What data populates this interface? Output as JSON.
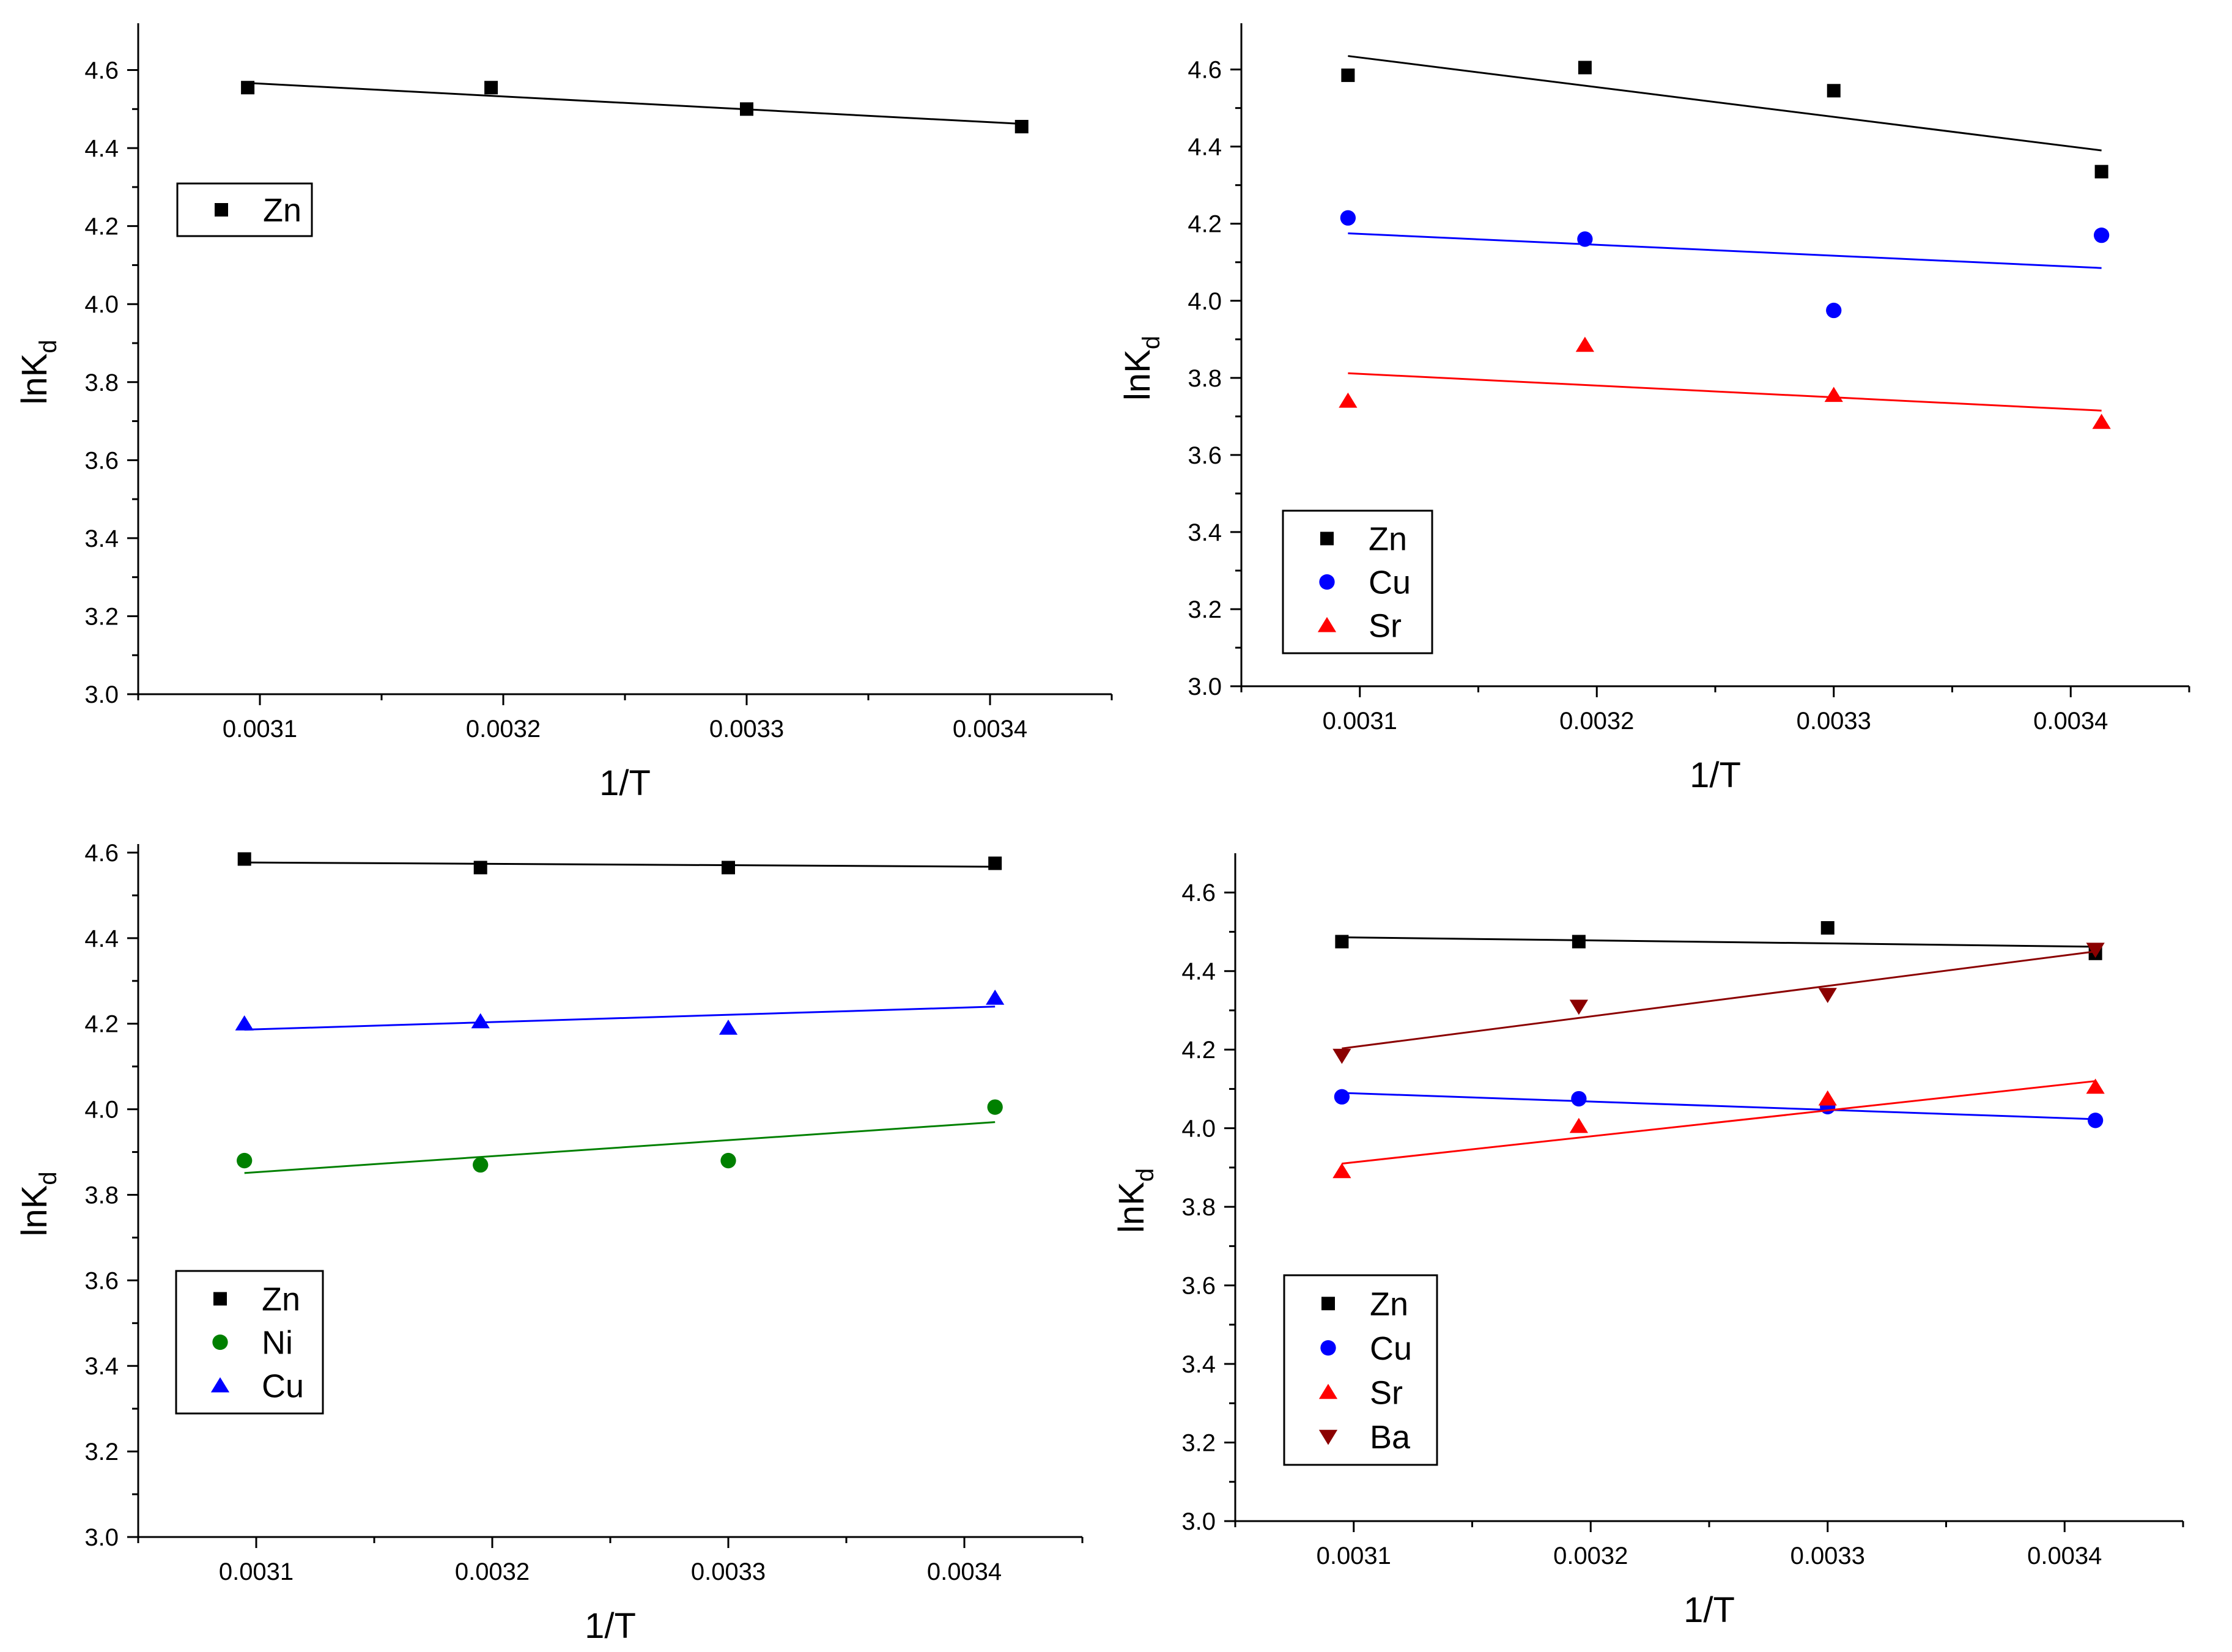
{
  "chart_data": [
    {
      "type": "scatter",
      "xlabel": "1/T",
      "ylabel": {
        "main": "lnK",
        "sub": "d"
      },
      "xlim": [
        0.00305,
        0.00345
      ],
      "ylim": [
        3.0,
        4.72
      ],
      "xticks": [
        0.0031,
        0.0032,
        0.0033,
        0.0034
      ],
      "xtick_labels": [
        "0.0031",
        "0.0032",
        "0.0033",
        "0.0034"
      ],
      "yticks": [
        3.0,
        3.2,
        3.4,
        3.6,
        3.8,
        4.0,
        4.2,
        4.4,
        4.6
      ],
      "ytick_labels": [
        "3.0",
        "3.2",
        "3.4",
        "3.6",
        "3.8",
        "4.0",
        "4.2",
        "4.4",
        "4.6"
      ],
      "legend_position": "top-left",
      "series": [
        {
          "name": "Zn",
          "color": "#000000",
          "marker": "square",
          "x": [
            0.003095,
            0.003195,
            0.0033,
            0.003413
          ],
          "y": [
            4.555,
            4.555,
            4.5,
            4.455
          ],
          "fit": [
            [
              0.003095,
              4.567
            ],
            [
              0.003413,
              4.462
            ]
          ]
        }
      ]
    },
    {
      "type": "scatter",
      "xlabel": "1/T",
      "ylabel": {
        "main": "lnK",
        "sub": "d"
      },
      "xlim": [
        0.00305,
        0.00345
      ],
      "ylim": [
        3.0,
        4.72
      ],
      "xticks": [
        0.0031,
        0.0032,
        0.0033,
        0.0034
      ],
      "xtick_labels": [
        "0.0031",
        "0.0032",
        "0.0033",
        "0.0034"
      ],
      "yticks": [
        3.0,
        3.2,
        3.4,
        3.6,
        3.8,
        4.0,
        4.2,
        4.4,
        4.6
      ],
      "ytick_labels": [
        "3.0",
        "3.2",
        "3.4",
        "3.6",
        "3.8",
        "4.0",
        "4.2",
        "4.4",
        "4.6"
      ],
      "legend_position": "bottom-left",
      "series": [
        {
          "name": "Zn",
          "color": "#000000",
          "marker": "square",
          "x": [
            0.003095,
            0.003195,
            0.0033,
            0.003413
          ],
          "y": [
            4.585,
            4.605,
            4.545,
            4.335
          ],
          "fit": [
            [
              0.003095,
              4.635
            ],
            [
              0.003413,
              4.39
            ]
          ]
        },
        {
          "name": "Cu",
          "color": "#0000ff",
          "marker": "circle",
          "x": [
            0.003095,
            0.003195,
            0.0033,
            0.003413
          ],
          "y": [
            4.215,
            4.16,
            3.975,
            4.17
          ],
          "fit": [
            [
              0.003095,
              4.175
            ],
            [
              0.003413,
              4.085
            ]
          ]
        },
        {
          "name": "Sr",
          "color": "#ff0000",
          "marker": "triangle",
          "x": [
            0.003095,
            0.003195,
            0.0033,
            0.003413
          ],
          "y": [
            3.74,
            3.885,
            3.755,
            3.685
          ],
          "fit": [
            [
              0.003095,
              3.812
            ],
            [
              0.003413,
              3.715
            ]
          ]
        }
      ]
    },
    {
      "type": "scatter",
      "xlabel": "1/T",
      "ylabel": {
        "main": "lnK",
        "sub": "d"
      },
      "xlim": [
        0.00305,
        0.00345
      ],
      "ylim": [
        3.0,
        4.62
      ],
      "xticks": [
        0.0031,
        0.0032,
        0.0033,
        0.0034
      ],
      "xtick_labels": [
        "0.0031",
        "0.0032",
        "0.0033",
        "0.0034"
      ],
      "yticks": [
        3.0,
        3.2,
        3.4,
        3.6,
        3.8,
        4.0,
        4.2,
        4.4,
        4.6
      ],
      "ytick_labels": [
        "3.0",
        "3.2",
        "3.4",
        "3.6",
        "3.8",
        "4.0",
        "4.2",
        "4.4",
        "4.6"
      ],
      "legend_position": "bottom-left",
      "series": [
        {
          "name": "Zn",
          "color": "#000000",
          "marker": "square",
          "x": [
            0.003095,
            0.003195,
            0.0033,
            0.003413
          ],
          "y": [
            4.585,
            4.565,
            4.565,
            4.575
          ],
          "fit": [
            [
              0.003095,
              4.577
            ],
            [
              0.003413,
              4.567
            ]
          ]
        },
        {
          "name": "Ni",
          "color": "#008000",
          "marker": "circle",
          "x": [
            0.003095,
            0.003195,
            0.0033,
            0.003413
          ],
          "y": [
            3.88,
            3.87,
            3.88,
            4.005
          ],
          "fit": [
            [
              0.003095,
              3.851
            ],
            [
              0.003413,
              3.97
            ]
          ]
        },
        {
          "name": "Cu",
          "color": "#0000ff",
          "marker": "triangle",
          "x": [
            0.003095,
            0.003195,
            0.0033,
            0.003413
          ],
          "y": [
            4.2,
            4.205,
            4.19,
            4.26
          ],
          "fit": [
            [
              0.003095,
              4.186
            ],
            [
              0.003413,
              4.24
            ]
          ]
        }
      ]
    },
    {
      "type": "scatter",
      "xlabel": "1/T",
      "ylabel": {
        "main": "lnK",
        "sub": "d"
      },
      "xlim": [
        0.00305,
        0.00345
      ],
      "ylim": [
        3.0,
        4.7
      ],
      "xticks": [
        0.0031,
        0.0032,
        0.0033,
        0.0034
      ],
      "xtick_labels": [
        "0.0031",
        "0.0032",
        "0.0033",
        "0.0034"
      ],
      "yticks": [
        3.0,
        3.2,
        3.4,
        3.6,
        3.8,
        4.0,
        4.2,
        4.4,
        4.6
      ],
      "ytick_labels": [
        "3.0",
        "3.2",
        "3.4",
        "3.6",
        "3.8",
        "4.0",
        "4.2",
        "4.4",
        "4.6"
      ],
      "legend_position": "bottom-left",
      "series": [
        {
          "name": "Zn",
          "color": "#000000",
          "marker": "square",
          "x": [
            0.003095,
            0.003195,
            0.0033,
            0.003413
          ],
          "y": [
            4.475,
            4.475,
            4.51,
            4.445
          ],
          "fit": [
            [
              0.003095,
              4.486
            ],
            [
              0.003413,
              4.462
            ]
          ]
        },
        {
          "name": "Cu",
          "color": "#0000ff",
          "marker": "circle",
          "x": [
            0.003095,
            0.003195,
            0.0033,
            0.003413
          ],
          "y": [
            4.08,
            4.075,
            4.055,
            4.02
          ],
          "fit": [
            [
              0.003095,
              4.09
            ],
            [
              0.003413,
              4.023
            ]
          ]
        },
        {
          "name": "Sr",
          "color": "#ff0000",
          "marker": "triangle",
          "x": [
            0.003095,
            0.003195,
            0.0033,
            0.003413
          ],
          "y": [
            3.89,
            4.005,
            4.075,
            4.105
          ],
          "fit": [
            [
              0.003095,
              3.91
            ],
            [
              0.003413,
              4.12
            ]
          ]
        },
        {
          "name": "Ba",
          "color": "#8b0000",
          "marker": "triangle-down",
          "x": [
            0.003095,
            0.003195,
            0.0033,
            0.003413
          ],
          "y": [
            4.185,
            4.31,
            4.34,
            4.455
          ],
          "fit": [
            [
              0.003095,
              4.203
            ],
            [
              0.003413,
              4.45
            ]
          ]
        }
      ]
    }
  ]
}
